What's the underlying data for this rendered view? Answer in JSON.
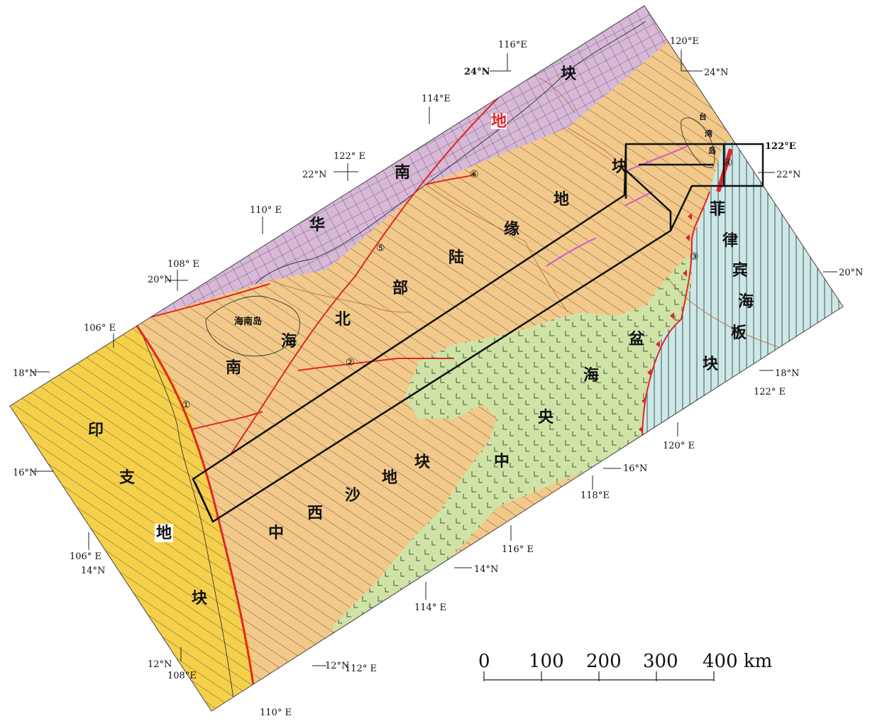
{
  "blocks": {
    "south_china": {
      "chars": [
        "华",
        "南",
        "地",
        "块"
      ],
      "color": "#d7b8d6"
    },
    "indochina": {
      "chars": [
        "印",
        "支",
        "地",
        "块"
      ],
      "color": "#f5d04a"
    },
    "north_margin": {
      "chars": [
        "南",
        "海",
        "北",
        "部",
        "陆",
        "缘",
        "地",
        "块"
      ],
      "color": "#f2c98a"
    },
    "xisha": {
      "chars": [
        "中",
        "西",
        "沙",
        "地",
        "块"
      ],
      "color": "#f2c98a"
    },
    "central_basin": {
      "chars": [
        "中",
        "央",
        "海",
        "盆"
      ],
      "color": "#cfe3a6"
    },
    "philippine": {
      "chars": [
        "菲",
        "律",
        "宾",
        "海",
        "板",
        "块"
      ],
      "color": "#cde8e6"
    }
  },
  "places": {
    "hainan": "海南岛",
    "taiwan": [
      "台",
      "湾",
      "岛"
    ]
  },
  "fault_numbers": [
    "①",
    "②",
    "③",
    "④",
    "⑤",
    "⑥"
  ],
  "coords": {
    "lon_106_top": "106° E",
    "lat_18_left": "18°N",
    "lat_16_left": "16°N",
    "lon_106_bottom": "106° E",
    "lat_14_left": "14°N",
    "lat_12_left": "12°N",
    "lon_108_bottom": "108°E",
    "lon_110_bottom": "110° E",
    "lat_12_inner": "12°N",
    "lon_112_bottom": "112° E",
    "lon_114_bottom": "114° E",
    "lat_14_inner": "14°N",
    "lon_116_bottom": "116° E",
    "lon_118_bottom": "118°E",
    "lat_16_inner": "16°N",
    "lon_120_bottom": "120° E",
    "lat_18_right": "18°N",
    "lon_122_right": "122° E",
    "lat_20_right": "20°N",
    "lat_22_right": "22°N",
    "lon_122_top_right": "122°E",
    "lon_120_top": "120°E",
    "lat_24_top_right": "24°N",
    "lon_116_top": "116°E",
    "lat_24_top_left": "24°N",
    "lon_114_top": "114°E",
    "lon_122_top_left": "122° E",
    "lat_22_top_left": "22°N",
    "lon_110_top": "110° E",
    "lon_108_top": "108° E",
    "lat_20_top_left": "20°N"
  },
  "scale_bar": {
    "ticks": [
      "0",
      "100",
      "200",
      "300",
      "400 km"
    ]
  }
}
